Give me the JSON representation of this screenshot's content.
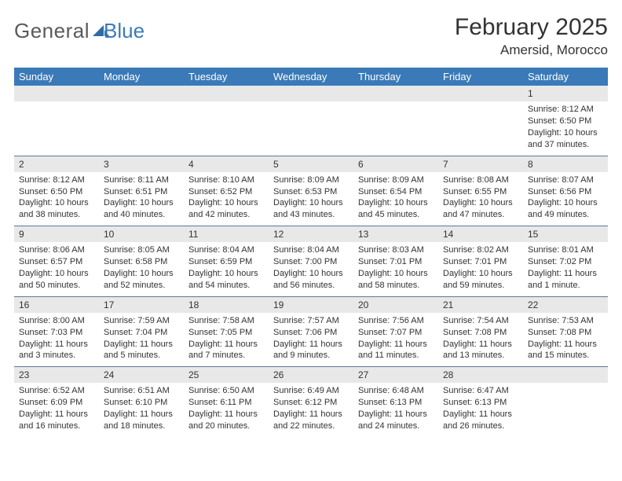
{
  "logo": {
    "text_general": "General",
    "text_blue": "Blue",
    "icon_fill": "#2f6aa8"
  },
  "title": "February 2025",
  "location": "Amersid, Morocco",
  "colors": {
    "header_bg": "#3a7ab8",
    "header_text": "#ffffff",
    "daynum_bg": "#e8e8e8",
    "cell_border": "#5a7a9a",
    "body_text": "#333333"
  },
  "day_headers": [
    "Sunday",
    "Monday",
    "Tuesday",
    "Wednesday",
    "Thursday",
    "Friday",
    "Saturday"
  ],
  "weeks": [
    [
      null,
      null,
      null,
      null,
      null,
      null,
      {
        "n": "1",
        "sunrise": "8:12 AM",
        "sunset": "6:50 PM",
        "daylight": "10 hours and 37 minutes."
      }
    ],
    [
      {
        "n": "2",
        "sunrise": "8:12 AM",
        "sunset": "6:50 PM",
        "daylight": "10 hours and 38 minutes."
      },
      {
        "n": "3",
        "sunrise": "8:11 AM",
        "sunset": "6:51 PM",
        "daylight": "10 hours and 40 minutes."
      },
      {
        "n": "4",
        "sunrise": "8:10 AM",
        "sunset": "6:52 PM",
        "daylight": "10 hours and 42 minutes."
      },
      {
        "n": "5",
        "sunrise": "8:09 AM",
        "sunset": "6:53 PM",
        "daylight": "10 hours and 43 minutes."
      },
      {
        "n": "6",
        "sunrise": "8:09 AM",
        "sunset": "6:54 PM",
        "daylight": "10 hours and 45 minutes."
      },
      {
        "n": "7",
        "sunrise": "8:08 AM",
        "sunset": "6:55 PM",
        "daylight": "10 hours and 47 minutes."
      },
      {
        "n": "8",
        "sunrise": "8:07 AM",
        "sunset": "6:56 PM",
        "daylight": "10 hours and 49 minutes."
      }
    ],
    [
      {
        "n": "9",
        "sunrise": "8:06 AM",
        "sunset": "6:57 PM",
        "daylight": "10 hours and 50 minutes."
      },
      {
        "n": "10",
        "sunrise": "8:05 AM",
        "sunset": "6:58 PM",
        "daylight": "10 hours and 52 minutes."
      },
      {
        "n": "11",
        "sunrise": "8:04 AM",
        "sunset": "6:59 PM",
        "daylight": "10 hours and 54 minutes."
      },
      {
        "n": "12",
        "sunrise": "8:04 AM",
        "sunset": "7:00 PM",
        "daylight": "10 hours and 56 minutes."
      },
      {
        "n": "13",
        "sunrise": "8:03 AM",
        "sunset": "7:01 PM",
        "daylight": "10 hours and 58 minutes."
      },
      {
        "n": "14",
        "sunrise": "8:02 AM",
        "sunset": "7:01 PM",
        "daylight": "10 hours and 59 minutes."
      },
      {
        "n": "15",
        "sunrise": "8:01 AM",
        "sunset": "7:02 PM",
        "daylight": "11 hours and 1 minute."
      }
    ],
    [
      {
        "n": "16",
        "sunrise": "8:00 AM",
        "sunset": "7:03 PM",
        "daylight": "11 hours and 3 minutes."
      },
      {
        "n": "17",
        "sunrise": "7:59 AM",
        "sunset": "7:04 PM",
        "daylight": "11 hours and 5 minutes."
      },
      {
        "n": "18",
        "sunrise": "7:58 AM",
        "sunset": "7:05 PM",
        "daylight": "11 hours and 7 minutes."
      },
      {
        "n": "19",
        "sunrise": "7:57 AM",
        "sunset": "7:06 PM",
        "daylight": "11 hours and 9 minutes."
      },
      {
        "n": "20",
        "sunrise": "7:56 AM",
        "sunset": "7:07 PM",
        "daylight": "11 hours and 11 minutes."
      },
      {
        "n": "21",
        "sunrise": "7:54 AM",
        "sunset": "7:08 PM",
        "daylight": "11 hours and 13 minutes."
      },
      {
        "n": "22",
        "sunrise": "7:53 AM",
        "sunset": "7:08 PM",
        "daylight": "11 hours and 15 minutes."
      }
    ],
    [
      {
        "n": "23",
        "sunrise": "6:52 AM",
        "sunset": "6:09 PM",
        "daylight": "11 hours and 16 minutes."
      },
      {
        "n": "24",
        "sunrise": "6:51 AM",
        "sunset": "6:10 PM",
        "daylight": "11 hours and 18 minutes."
      },
      {
        "n": "25",
        "sunrise": "6:50 AM",
        "sunset": "6:11 PM",
        "daylight": "11 hours and 20 minutes."
      },
      {
        "n": "26",
        "sunrise": "6:49 AM",
        "sunset": "6:12 PM",
        "daylight": "11 hours and 22 minutes."
      },
      {
        "n": "27",
        "sunrise": "6:48 AM",
        "sunset": "6:13 PM",
        "daylight": "11 hours and 24 minutes."
      },
      {
        "n": "28",
        "sunrise": "6:47 AM",
        "sunset": "6:13 PM",
        "daylight": "11 hours and 26 minutes."
      },
      null
    ]
  ],
  "labels": {
    "sunrise": "Sunrise: ",
    "sunset": "Sunset: ",
    "daylight": "Daylight: "
  }
}
